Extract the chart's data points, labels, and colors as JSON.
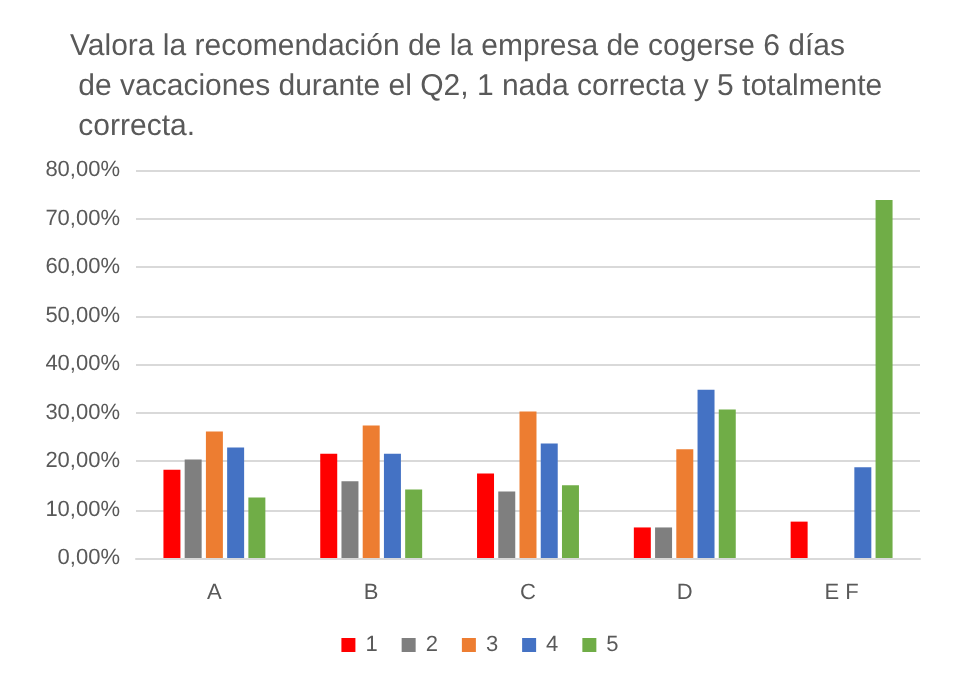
{
  "chart_data": {
    "type": "bar",
    "title": "Valora la recomendación de la empresa de cogerse 6 días de vacaciones durante el Q2, 1 nada correcta y 5 totalmente correcta.",
    "categories": [
      "A",
      "B",
      "C",
      "D",
      "E F"
    ],
    "series": [
      {
        "name": "1",
        "color": "#ff0000",
        "values": [
          18.2,
          21.5,
          17.4,
          6.3,
          7.5
        ]
      },
      {
        "name": "2",
        "color": "#7f7f7f",
        "values": [
          20.3,
          15.8,
          13.7,
          6.3,
          0
        ]
      },
      {
        "name": "3",
        "color": "#ed7d31",
        "values": [
          26.1,
          27.3,
          30.2,
          22.4,
          0
        ]
      },
      {
        "name": "4",
        "color": "#4472c4",
        "values": [
          22.8,
          21.5,
          23.6,
          34.7,
          18.7
        ]
      },
      {
        "name": "5",
        "color": "#70ad47",
        "values": [
          12.5,
          14.1,
          15.0,
          30.6,
          73.8
        ]
      }
    ],
    "ylim": [
      0,
      80
    ],
    "yticks": [
      {
        "value": 0,
        "label": "0,00%"
      },
      {
        "value": 10,
        "label": "10,00%"
      },
      {
        "value": 20,
        "label": "20,00%"
      },
      {
        "value": 30,
        "label": "30,00%"
      },
      {
        "value": 40,
        "label": "40,00%"
      },
      {
        "value": 50,
        "label": "50,00%"
      },
      {
        "value": 60,
        "label": "60,00%"
      },
      {
        "value": 70,
        "label": "70,00%"
      },
      {
        "value": 80,
        "label": "80,00%"
      }
    ],
    "grid": "y",
    "legend": "bottom"
  }
}
